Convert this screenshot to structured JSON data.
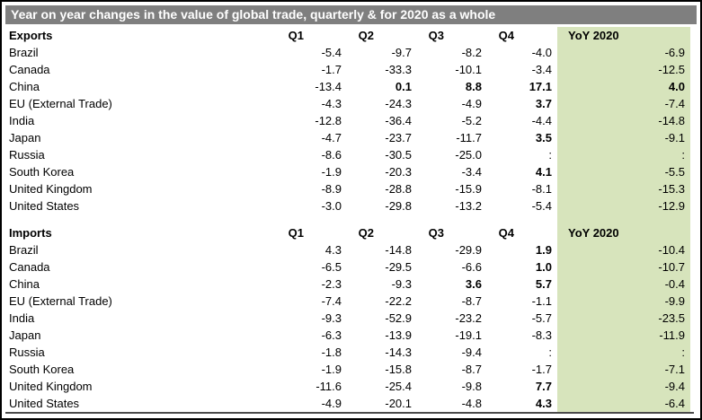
{
  "title": "Year on year changes in the value of global trade, quarterly & for 2020 as a whole",
  "missing_value_symbol": ":",
  "colors": {
    "title_bar_bg": "#7f7f7f",
    "title_text": "#ffffff",
    "yoy_column_bg": "#d7e4bc",
    "text": "#000000",
    "bottom_rule": "#4a4a4a"
  },
  "chart_data": [
    {
      "type": "table",
      "section_label": "Exports",
      "columns": [
        "Q1",
        "Q2",
        "Q3",
        "Q4",
        "YoY 2020"
      ],
      "rows": [
        {
          "label": "Brazil",
          "values": [
            -5.4,
            -9.7,
            -8.2,
            -4.0,
            -6.9
          ],
          "bold": [
            false,
            false,
            false,
            false,
            false
          ]
        },
        {
          "label": "Canada",
          "values": [
            -1.7,
            -33.3,
            -10.1,
            -3.4,
            -12.5
          ],
          "bold": [
            false,
            false,
            false,
            false,
            false
          ]
        },
        {
          "label": "China",
          "values": [
            -13.4,
            0.1,
            8.8,
            17.1,
            4.0
          ],
          "bold": [
            false,
            true,
            true,
            true,
            true
          ]
        },
        {
          "label": "EU (External Trade)",
          "values": [
            -4.3,
            -24.3,
            -4.9,
            3.7,
            -7.4
          ],
          "bold": [
            false,
            false,
            false,
            true,
            false
          ]
        },
        {
          "label": "India",
          "values": [
            -12.8,
            -36.4,
            -5.2,
            -4.4,
            -14.8
          ],
          "bold": [
            false,
            false,
            false,
            false,
            false
          ]
        },
        {
          "label": "Japan",
          "values": [
            -4.7,
            -23.7,
            -11.7,
            3.5,
            -9.1
          ],
          "bold": [
            false,
            false,
            false,
            true,
            false
          ]
        },
        {
          "label": "Russia",
          "values": [
            -8.6,
            -30.5,
            -25.0,
            ":",
            ":"
          ],
          "bold": [
            false,
            false,
            false,
            false,
            false
          ]
        },
        {
          "label": "South Korea",
          "values": [
            -1.9,
            -20.3,
            -3.4,
            4.1,
            -5.5
          ],
          "bold": [
            false,
            false,
            false,
            true,
            false
          ]
        },
        {
          "label": "United Kingdom",
          "values": [
            -8.9,
            -28.8,
            -15.9,
            -8.1,
            -15.3
          ],
          "bold": [
            false,
            false,
            false,
            false,
            false
          ]
        },
        {
          "label": "United States",
          "values": [
            -3.0,
            -29.8,
            -13.2,
            -5.4,
            -12.9
          ],
          "bold": [
            false,
            false,
            false,
            false,
            false
          ]
        }
      ]
    },
    {
      "type": "table",
      "section_label": "Imports",
      "columns": [
        "Q1",
        "Q2",
        "Q3",
        "Q4",
        "YoY 2020"
      ],
      "rows": [
        {
          "label": "Brazil",
          "values": [
            4.3,
            -14.8,
            -29.9,
            1.9,
            -10.4
          ],
          "bold": [
            false,
            false,
            false,
            true,
            false
          ]
        },
        {
          "label": "Canada",
          "values": [
            -6.5,
            -29.5,
            -6.6,
            1.0,
            -10.7
          ],
          "bold": [
            false,
            false,
            false,
            true,
            false
          ]
        },
        {
          "label": "China",
          "values": [
            -2.3,
            -9.3,
            3.6,
            5.7,
            -0.4
          ],
          "bold": [
            false,
            false,
            true,
            true,
            false
          ]
        },
        {
          "label": "EU (External Trade)",
          "values": [
            -7.4,
            -22.2,
            -8.7,
            -1.1,
            -9.9
          ],
          "bold": [
            false,
            false,
            false,
            false,
            false
          ]
        },
        {
          "label": "India",
          "values": [
            -9.3,
            -52.9,
            -23.2,
            -5.7,
            -23.5
          ],
          "bold": [
            false,
            false,
            false,
            false,
            false
          ]
        },
        {
          "label": "Japan",
          "values": [
            -6.3,
            -13.9,
            -19.1,
            -8.3,
            -11.9
          ],
          "bold": [
            false,
            false,
            false,
            false,
            false
          ]
        },
        {
          "label": "Russia",
          "values": [
            -1.8,
            -14.3,
            -9.4,
            ":",
            ":"
          ],
          "bold": [
            false,
            false,
            false,
            false,
            false
          ]
        },
        {
          "label": "South Korea",
          "values": [
            -1.9,
            -15.8,
            -8.7,
            -1.7,
            -7.1
          ],
          "bold": [
            false,
            false,
            false,
            false,
            false
          ]
        },
        {
          "label": "United Kingdom",
          "values": [
            -11.6,
            -25.4,
            -9.8,
            7.7,
            -9.4
          ],
          "bold": [
            false,
            false,
            false,
            true,
            false
          ]
        },
        {
          "label": "United States",
          "values": [
            -4.9,
            -20.1,
            -4.8,
            4.3,
            -6.4
          ],
          "bold": [
            false,
            false,
            false,
            true,
            false
          ]
        }
      ]
    }
  ]
}
